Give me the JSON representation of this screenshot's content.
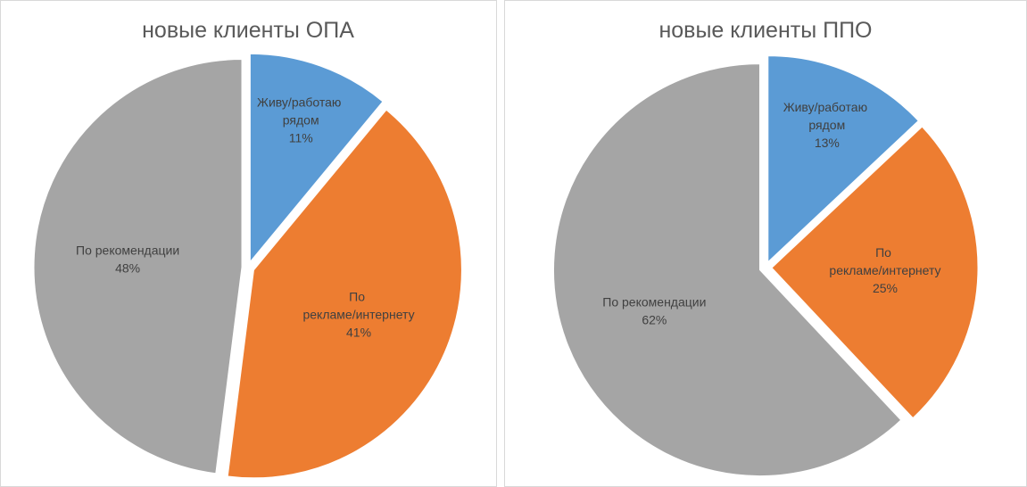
{
  "chart_data": [
    {
      "type": "pie",
      "title": "новые клиенты ОПА",
      "categories": [
        "Живу/работаю рядом",
        "По рекламе/интернету",
        "По рекомендации"
      ],
      "values": [
        11,
        41,
        48
      ],
      "value_labels": [
        "11%",
        "41%",
        "48%"
      ],
      "colors": [
        "#5b9bd5",
        "#ed7d31",
        "#a5a5a5"
      ]
    },
    {
      "type": "pie",
      "title": "новые клиенты ППО",
      "categories": [
        "Живу/работаю рядом",
        "По рекламе/интернету",
        "По рекомендации"
      ],
      "values": [
        13,
        25,
        62
      ],
      "value_labels": [
        "13%",
        "25%",
        "62%"
      ],
      "colors": [
        "#5b9bd5",
        "#ed7d31",
        "#a5a5a5"
      ]
    }
  ]
}
